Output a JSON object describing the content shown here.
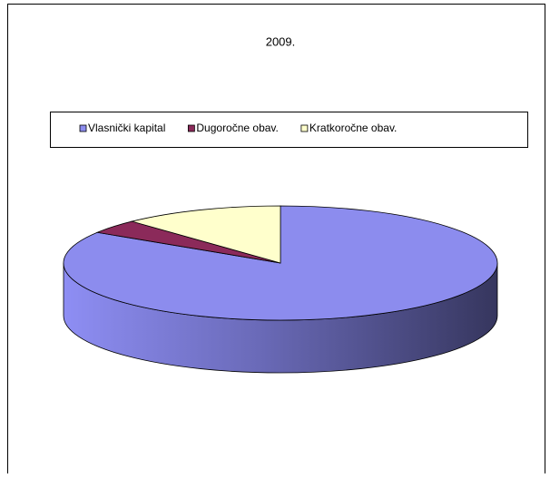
{
  "chart_data": {
    "type": "pie3d",
    "title": "2009.",
    "categories": [
      "Vlasnički kapital",
      "Dugoročne obav.",
      "Kratkoročne obav."
    ],
    "values": [
      84,
      4,
      12
    ],
    "colors": [
      "#8c8cee",
      "#8b2a5a",
      "#ffffcc"
    ],
    "legend": "top"
  }
}
